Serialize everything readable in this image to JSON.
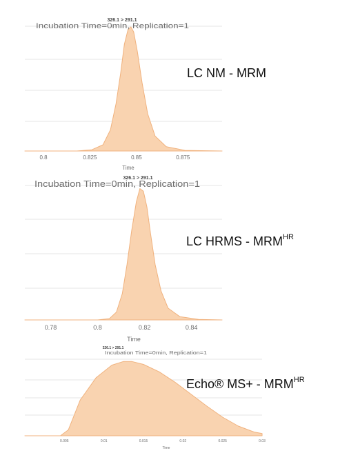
{
  "colors": {
    "peak_fill": "#f9d3b0",
    "peak_stroke": "#f0b27e",
    "grid": "#e6e6e6",
    "axis_text": "#6d6d6d",
    "title_text": "#6d6d6d"
  },
  "panels": [
    {
      "method_label": {
        "main": "LC NM - MRM",
        "sup": ""
      }
    },
    {
      "method_label": {
        "main": "LC HRMS - MRM",
        "sup": "HR"
      }
    },
    {
      "method_label": {
        "main": "Echo® MS+ - MRM",
        "sup": "HR"
      }
    }
  ],
  "chart_data": [
    {
      "type": "area",
      "transition": "326.1 > 291.1",
      "title": "Incubation Time=0min, Replication=1",
      "xlabel": "Time",
      "ylabel": "",
      "xlim": [
        0.79,
        0.896
      ],
      "ylim": [
        0,
        1.05
      ],
      "x_ticks": [
        0.8,
        0.825,
        0.85,
        0.875
      ],
      "x_tick_labels": [
        "0.8",
        "0.825",
        "0.85",
        "0.875"
      ],
      "grid": true,
      "series": [
        {
          "x": [
            0.79,
            0.818,
            0.826,
            0.832,
            0.836,
            0.839,
            0.8415,
            0.8435,
            0.8455,
            0.847,
            0.8485,
            0.8505,
            0.853,
            0.856,
            0.86,
            0.866,
            0.876,
            0.896
          ],
          "y": [
            0,
            0,
            0.01,
            0.05,
            0.17,
            0.38,
            0.63,
            0.86,
            0.98,
            1.0,
            0.96,
            0.8,
            0.55,
            0.3,
            0.12,
            0.035,
            0.005,
            0
          ]
        }
      ]
    },
    {
      "type": "area",
      "transition": "326.1 > 291.1",
      "title": "Incubation Time=0min, Replication=1",
      "xlabel": "Time",
      "ylabel": "",
      "xlim": [
        0.769,
        0.853
      ],
      "ylim": [
        0,
        1.05
      ],
      "x_ticks": [
        0.78,
        0.8,
        0.82,
        0.84
      ],
      "x_tick_labels": [
        "0.78",
        "0.8",
        "0.82",
        "0.84"
      ],
      "grid": true,
      "series": [
        {
          "x": [
            0.769,
            0.8,
            0.805,
            0.808,
            0.8105,
            0.8125,
            0.8145,
            0.8165,
            0.818,
            0.8195,
            0.821,
            0.8225,
            0.8245,
            0.827,
            0.83,
            0.835,
            0.843,
            0.853
          ],
          "y": [
            0,
            0,
            0.01,
            0.06,
            0.2,
            0.42,
            0.68,
            0.9,
            1.0,
            0.98,
            0.86,
            0.66,
            0.42,
            0.22,
            0.09,
            0.025,
            0.004,
            0
          ]
        }
      ]
    },
    {
      "type": "area",
      "transition": "326.1 > 291.1",
      "title": "Incubation Time=0min, Replication=1",
      "xlabel": "Time",
      "ylabel": "",
      "xlim": [
        0.0,
        0.03
      ],
      "ylim": [
        0,
        1.15
      ],
      "x_ticks": [
        0.005,
        0.01,
        0.015,
        0.02,
        0.025,
        0.03
      ],
      "x_tick_labels": [
        "0.005",
        "0.01",
        "0.015",
        "0.02",
        "0.025",
        "0.03"
      ],
      "grid": true,
      "series": [
        {
          "x": [
            0.0,
            0.0045,
            0.0055,
            0.007,
            0.009,
            0.011,
            0.0125,
            0.0135,
            0.015,
            0.017,
            0.019,
            0.021,
            0.023,
            0.025,
            0.027,
            0.029,
            0.03
          ],
          "y": [
            0,
            0,
            0.08,
            0.48,
            0.78,
            0.95,
            1.0,
            1.0,
            0.96,
            0.86,
            0.72,
            0.56,
            0.4,
            0.25,
            0.13,
            0.05,
            0.03
          ]
        }
      ]
    }
  ]
}
